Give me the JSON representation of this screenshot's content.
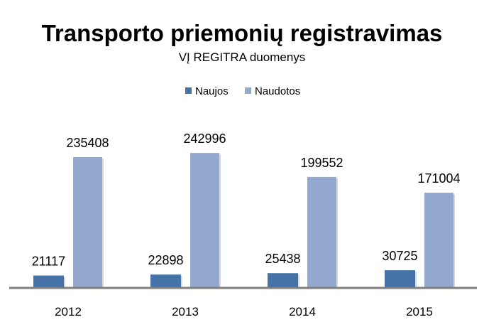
{
  "chart_data": {
    "type": "bar",
    "title": "Transporto priemonių registravimas",
    "subtitle": "VĮ REGITRA duomenys",
    "categories": [
      "2012",
      "2013",
      "2014",
      "2015"
    ],
    "series": [
      {
        "name": "Naujos",
        "color": "#4572A7",
        "values": [
          21117,
          22898,
          25438,
          30725
        ]
      },
      {
        "name": "Naudotos",
        "color": "#93A9CF",
        "values": [
          235408,
          242996,
          199552,
          171004
        ]
      }
    ],
    "xlabel": "",
    "ylabel": "",
    "ylim": [
      0,
      250000
    ],
    "grid": false,
    "legend": "top-center",
    "axis_color": "#808080"
  }
}
